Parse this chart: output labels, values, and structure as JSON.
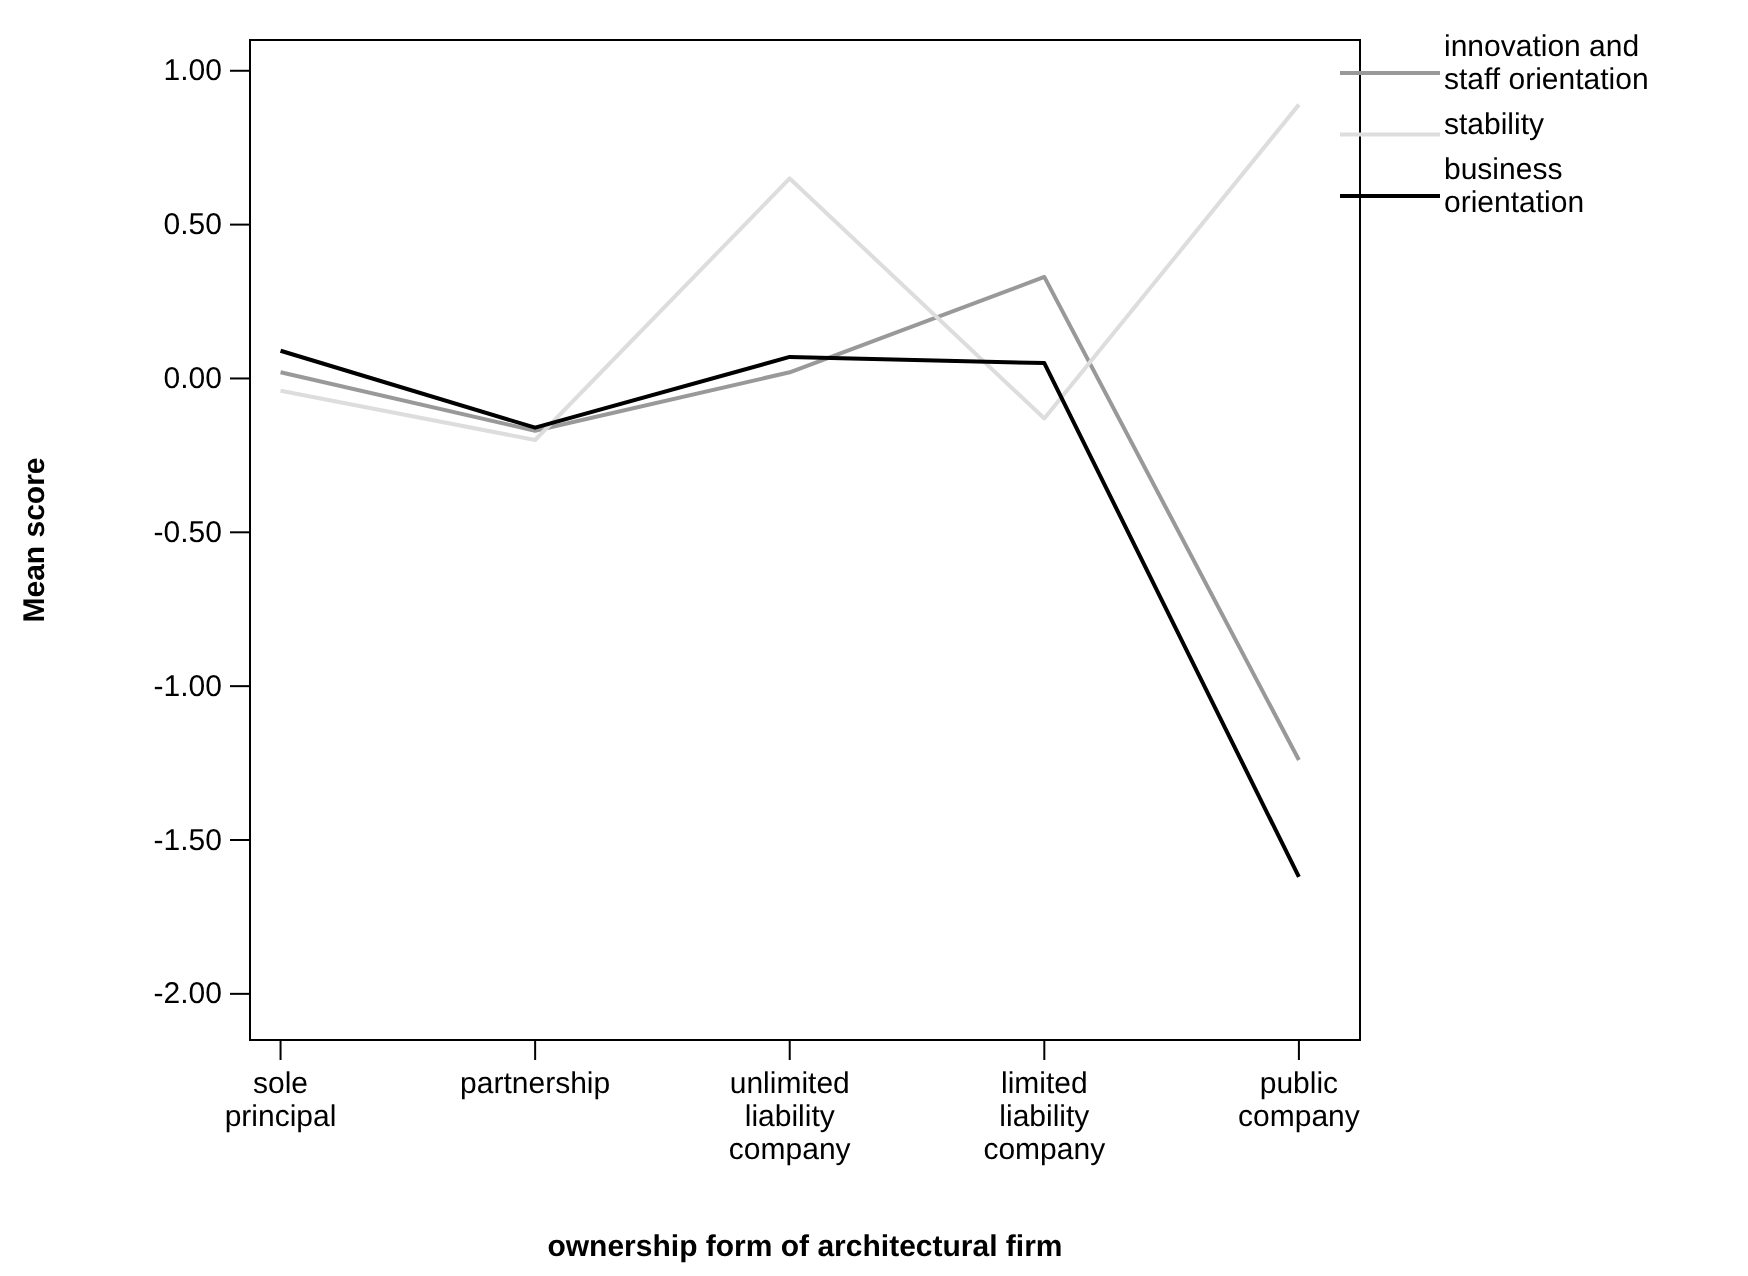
{
  "chart_data": {
    "type": "line",
    "xlabel": "ownership form of architectural firm",
    "ylabel": "Mean score",
    "categories": [
      "sole principal",
      "partnership",
      "unlimited liability company",
      "limited liability company",
      "public company"
    ],
    "series": [
      {
        "name": "innovation and staff orientation",
        "color": "#999999",
        "values": [
          0.02,
          -0.17,
          0.02,
          0.33,
          -1.24
        ]
      },
      {
        "name": "stability",
        "color": "#dddddd",
        "values": [
          -0.04,
          -0.2,
          0.65,
          -0.13,
          0.89
        ]
      },
      {
        "name": "business orientation",
        "color": "#000000",
        "values": [
          0.09,
          -0.16,
          0.07,
          0.05,
          -1.62
        ]
      }
    ],
    "ylim": [
      -2.15,
      1.1
    ],
    "yticks": [
      {
        "value": 1,
        "label": "1.00"
      },
      {
        "value": 0.5,
        "label": "0.50"
      },
      {
        "value": 0,
        "label": "0.00"
      },
      {
        "value": -0.5,
        "label": "-0.50"
      },
      {
        "value": -1,
        "label": "-1.00"
      },
      {
        "value": -1.5,
        "label": "-1.50"
      },
      {
        "value": -2,
        "label": "-2.00"
      }
    ],
    "grid": false,
    "legend": "top right",
    "marker": "none",
    "line_style": "solid"
  }
}
